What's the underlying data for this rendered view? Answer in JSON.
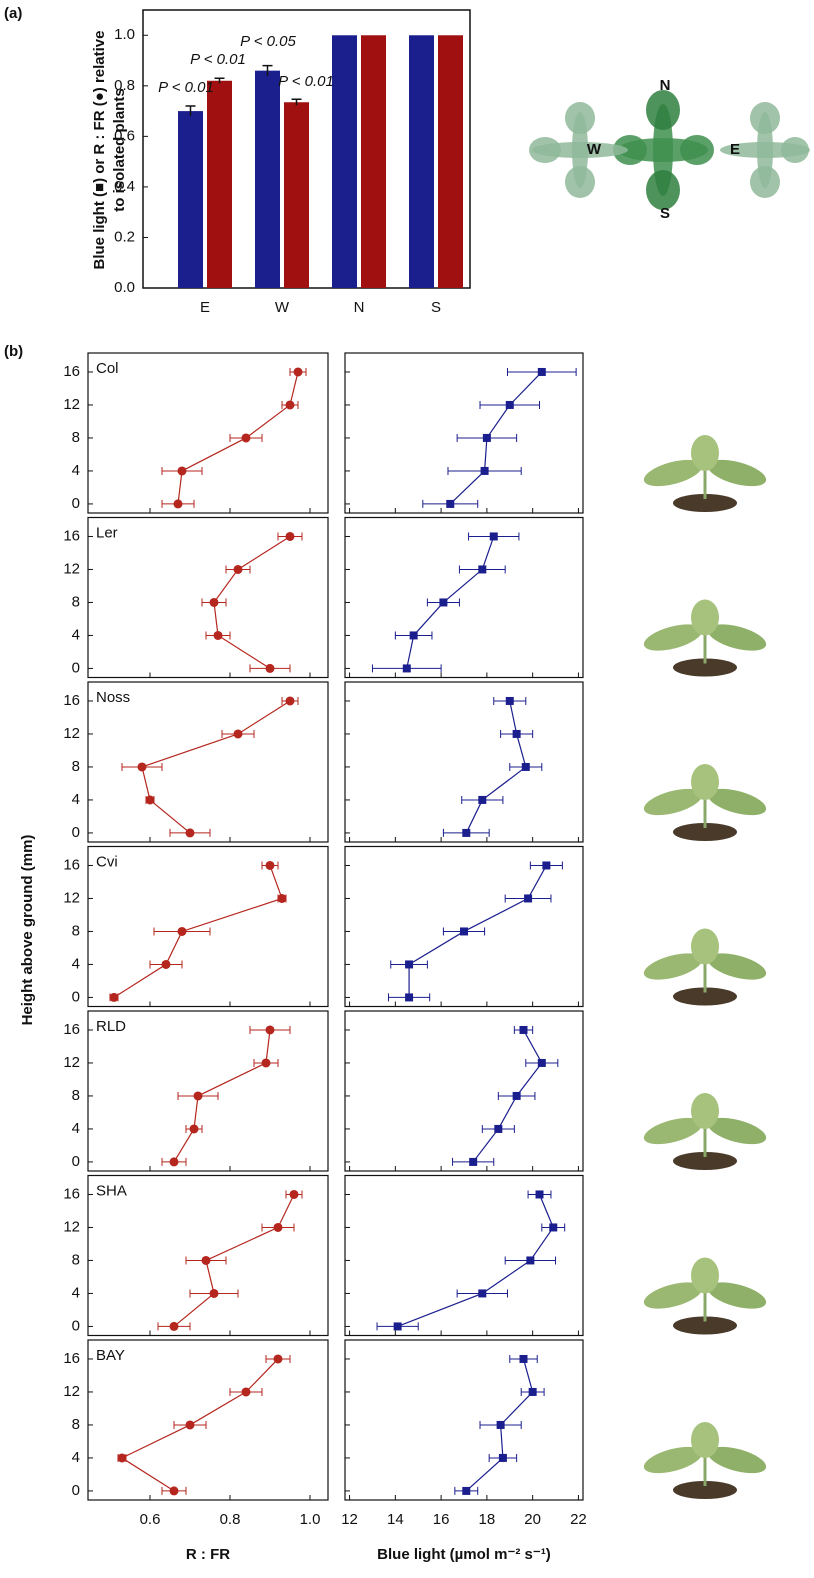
{
  "panel_labels": [
    "(a)",
    "(b)"
  ],
  "rosette_labels": [
    "N",
    "W",
    "E",
    "S"
  ],
  "chart_data": [
    {
      "type": "bar",
      "ylabel": [
        "Blue light (■) or R : FR (●) relative",
        "to isolated plants"
      ],
      "categories": [
        "E",
        "W",
        "N",
        "S"
      ],
      "series": [
        {
          "color": "#1b1f8e",
          "values": [
            0.7,
            0.86,
            1.0,
            1.0
          ],
          "errors": [
            0.02,
            0.02,
            null,
            null
          ]
        },
        {
          "color": "#a01010",
          "values": [
            0.82,
            0.735,
            1.0,
            1.0
          ],
          "errors": [
            0.01,
            0.012,
            null,
            null
          ]
        }
      ],
      "ylim": [
        0,
        1.1
      ],
      "yticks": [
        {
          "value": 0,
          "label": "0.0"
        },
        0.2,
        0.4,
        0.6,
        0.8,
        {
          "value": 1,
          "label": "1.0"
        }
      ],
      "annotations": [
        "P < 0.01",
        "P < 0.01",
        "P < 0.05",
        "P < 0.01"
      ]
    },
    {
      "type": "profile",
      "label": "Col",
      "ylabel": "Height above ground (mm)",
      "marker": "circle",
      "color": "#b5261e",
      "y": [
        16,
        12,
        8,
        4,
        0
      ],
      "values": [
        0.97,
        0.95,
        0.84,
        0.68,
        0.67
      ],
      "errors": [
        0.02,
        0.02,
        0.04,
        0.05,
        0.04
      ],
      "xlim": [
        0.445,
        1.045
      ],
      "xticks": [
        0.6,
        0.8,
        {
          "value": 1,
          "label": "1.0"
        }
      ],
      "ylim": [
        -1.1,
        18.3
      ],
      "yticks": [
        0,
        4,
        8,
        12,
        16
      ]
    },
    {
      "type": "profile",
      "marker": "square",
      "color": "#1b1f8e",
      "y": [
        16,
        12,
        8,
        4,
        0
      ],
      "values": [
        20.4,
        19.0,
        18.0,
        17.9,
        16.4
      ],
      "errors": [
        1.5,
        1.3,
        1.3,
        1.6,
        1.2
      ],
      "xlim": [
        11.8,
        22.2
      ],
      "xticks": [
        12,
        14,
        16,
        18,
        20,
        22
      ],
      "ylim": [
        -1.1,
        18.3
      ],
      "yticks": [
        0,
        4,
        8,
        12,
        16
      ]
    },
    {
      "type": "profile",
      "label": "Ler",
      "marker": "circle",
      "color": "#b5261e",
      "y": [
        16,
        12,
        8,
        4,
        0
      ],
      "values": [
        0.95,
        0.82,
        0.76,
        0.77,
        0.9
      ],
      "errors": [
        0.03,
        0.03,
        0.03,
        0.03,
        0.05
      ],
      "xlim": [
        0.445,
        1.045
      ],
      "xticks": [
        0.6,
        0.8,
        {
          "value": 1,
          "label": "1.0"
        }
      ],
      "ylim": [
        -1.1,
        18.3
      ],
      "yticks": [
        0,
        4,
        8,
        12,
        16
      ]
    },
    {
      "type": "profile",
      "marker": "square",
      "color": "#1b1f8e",
      "y": [
        16,
        12,
        8,
        4,
        0
      ],
      "values": [
        18.3,
        17.8,
        16.1,
        14.8,
        14.5
      ],
      "errors": [
        1.1,
        1.0,
        0.7,
        0.8,
        1.5
      ],
      "xlim": [
        11.8,
        22.2
      ],
      "xticks": [
        12,
        14,
        16,
        18,
        20,
        22
      ],
      "ylim": [
        -1.1,
        18.3
      ],
      "yticks": [
        0,
        4,
        8,
        12,
        16
      ]
    },
    {
      "type": "profile",
      "label": "Noss",
      "marker": "circle",
      "color": "#b5261e",
      "y": [
        16,
        12,
        8,
        4,
        0
      ],
      "values": [
        0.95,
        0.82,
        0.58,
        0.6,
        0.7
      ],
      "errors": [
        0.02,
        0.04,
        0.05,
        0.01,
        0.05
      ],
      "xlim": [
        0.445,
        1.045
      ],
      "xticks": [
        0.6,
        0.8,
        {
          "value": 1,
          "label": "1.0"
        }
      ],
      "ylim": [
        -1.1,
        18.3
      ],
      "yticks": [
        0,
        4,
        8,
        12,
        16
      ]
    },
    {
      "type": "profile",
      "marker": "square",
      "color": "#1b1f8e",
      "y": [
        16,
        12,
        8,
        4,
        0
      ],
      "values": [
        19.0,
        19.3,
        19.7,
        17.8,
        17.1
      ],
      "errors": [
        0.7,
        0.7,
        0.7,
        0.9,
        1.0
      ],
      "xlim": [
        11.8,
        22.2
      ],
      "xticks": [
        12,
        14,
        16,
        18,
        20,
        22
      ],
      "ylim": [
        -1.1,
        18.3
      ],
      "yticks": [
        0,
        4,
        8,
        12,
        16
      ]
    },
    {
      "type": "profile",
      "label": "Cvi",
      "marker": "circle",
      "color": "#b5261e",
      "y": [
        16,
        12,
        8,
        4,
        0
      ],
      "values": [
        0.9,
        0.93,
        0.68,
        0.64,
        0.51
      ],
      "errors": [
        0.02,
        0.01,
        0.07,
        0.04,
        0.01
      ],
      "xlim": [
        0.445,
        1.045
      ],
      "xticks": [
        0.6,
        0.8,
        {
          "value": 1,
          "label": "1.0"
        }
      ],
      "ylim": [
        -1.1,
        18.3
      ],
      "yticks": [
        0,
        4,
        8,
        12,
        16
      ]
    },
    {
      "type": "profile",
      "marker": "square",
      "color": "#1b1f8e",
      "y": [
        16,
        12,
        8,
        4,
        0
      ],
      "values": [
        20.6,
        19.8,
        17.0,
        14.6,
        14.6
      ],
      "errors": [
        0.7,
        1.0,
        0.9,
        0.8,
        0.9
      ],
      "xlim": [
        11.8,
        22.2
      ],
      "xticks": [
        12,
        14,
        16,
        18,
        20,
        22
      ],
      "ylim": [
        -1.1,
        18.3
      ],
      "yticks": [
        0,
        4,
        8,
        12,
        16
      ]
    },
    {
      "type": "profile",
      "label": "RLD",
      "marker": "circle",
      "color": "#b5261e",
      "y": [
        16,
        12,
        8,
        4,
        0
      ],
      "values": [
        0.9,
        0.89,
        0.72,
        0.71,
        0.66
      ],
      "errors": [
        0.05,
        0.03,
        0.05,
        0.02,
        0.03
      ],
      "xlim": [
        0.445,
        1.045
      ],
      "xticks": [
        0.6,
        0.8,
        {
          "value": 1,
          "label": "1.0"
        }
      ],
      "ylim": [
        -1.1,
        18.3
      ],
      "yticks": [
        0,
        4,
        8,
        12,
        16
      ]
    },
    {
      "type": "profile",
      "marker": "square",
      "color": "#1b1f8e",
      "y": [
        16,
        12,
        8,
        4,
        0
      ],
      "values": [
        19.6,
        20.4,
        19.3,
        18.5,
        17.4
      ],
      "errors": [
        0.4,
        0.7,
        0.8,
        0.7,
        0.9
      ],
      "xlim": [
        11.8,
        22.2
      ],
      "xticks": [
        12,
        14,
        16,
        18,
        20,
        22
      ],
      "ylim": [
        -1.1,
        18.3
      ],
      "yticks": [
        0,
        4,
        8,
        12,
        16
      ]
    },
    {
      "type": "profile",
      "label": "SHA",
      "marker": "circle",
      "color": "#b5261e",
      "y": [
        16,
        12,
        8,
        4,
        0
      ],
      "values": [
        0.96,
        0.92,
        0.74,
        0.76,
        0.66
      ],
      "errors": [
        0.02,
        0.04,
        0.05,
        0.06,
        0.04
      ],
      "xlim": [
        0.445,
        1.045
      ],
      "xticks": [
        0.6,
        0.8,
        {
          "value": 1,
          "label": "1.0"
        }
      ],
      "ylim": [
        -1.1,
        18.3
      ],
      "yticks": [
        0,
        4,
        8,
        12,
        16
      ]
    },
    {
      "type": "profile",
      "marker": "square",
      "color": "#1b1f8e",
      "y": [
        16,
        12,
        8,
        4,
        0
      ],
      "values": [
        20.3,
        20.9,
        19.9,
        17.8,
        14.1
      ],
      "errors": [
        0.5,
        0.5,
        1.1,
        1.1,
        0.9
      ],
      "xlim": [
        11.8,
        22.2
      ],
      "xticks": [
        12,
        14,
        16,
        18,
        20,
        22
      ],
      "ylim": [
        -1.1,
        18.3
      ],
      "yticks": [
        0,
        4,
        8,
        12,
        16
      ]
    },
    {
      "type": "profile",
      "label": "BAY",
      "xlabel": "R : FR",
      "marker": "circle",
      "color": "#b5261e",
      "y": [
        16,
        12,
        8,
        4,
        0
      ],
      "values": [
        0.92,
        0.84,
        0.7,
        0.53,
        0.66
      ],
      "errors": [
        0.03,
        0.04,
        0.04,
        0.01,
        0.03
      ],
      "xlim": [
        0.445,
        1.045
      ],
      "xticks": [
        0.6,
        0.8,
        {
          "value": 1,
          "label": "1.0"
        }
      ],
      "ylim": [
        -1.1,
        18.3
      ],
      "yticks": [
        0,
        4,
        8,
        12,
        16
      ]
    },
    {
      "type": "profile",
      "xlabel": "Blue light (µmol m⁻² s⁻¹)",
      "marker": "square",
      "color": "#1b1f8e",
      "y": [
        16,
        12,
        8,
        4,
        0
      ],
      "values": [
        19.6,
        20.0,
        18.6,
        18.7,
        17.1
      ],
      "errors": [
        0.6,
        0.5,
        0.9,
        0.6,
        0.5
      ],
      "xlim": [
        11.8,
        22.2
      ],
      "xticks": [
        12,
        14,
        16,
        18,
        20,
        22
      ],
      "ylim": [
        -1.1,
        18.3
      ],
      "yticks": [
        0,
        4,
        8,
        12,
        16
      ]
    }
  ]
}
